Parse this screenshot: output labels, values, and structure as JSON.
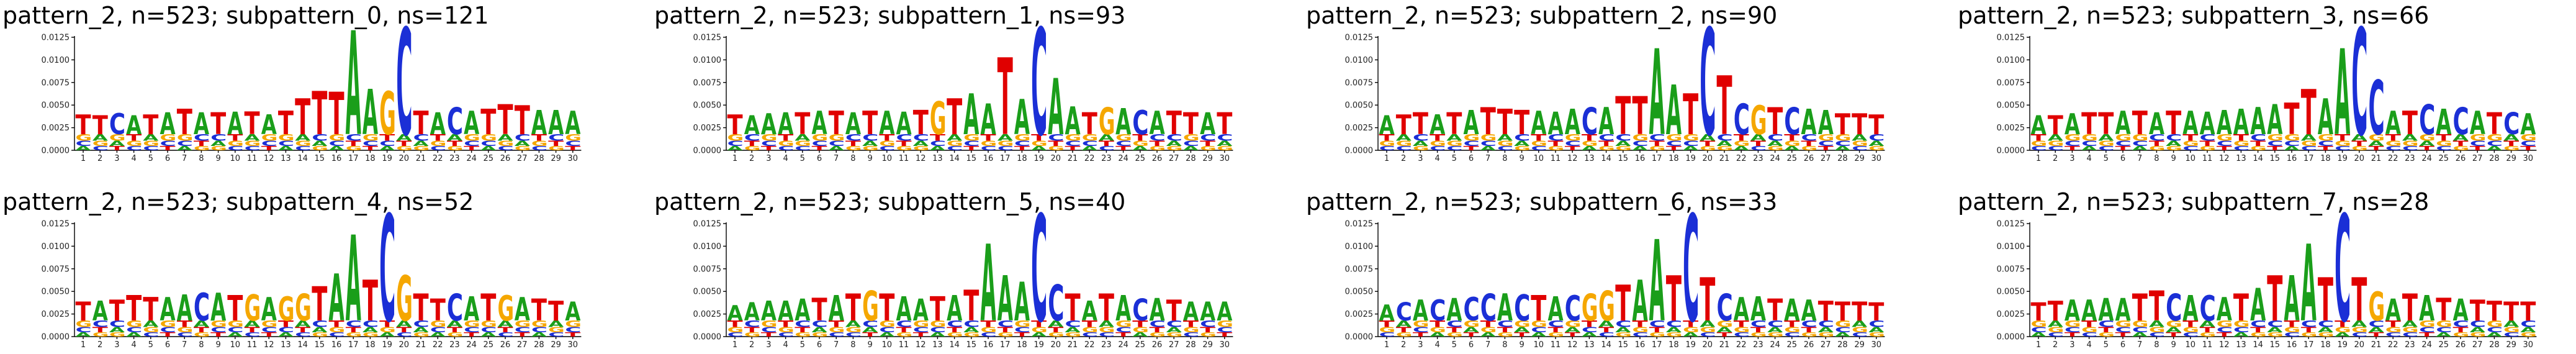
{
  "colors": {
    "A": "#1a9e1a",
    "C": "#1b2fd6",
    "G": "#f5a700",
    "T": "#e00000"
  },
  "chart_data": [
    {
      "type": "sequence-logo",
      "title": "pattern_2, n=523; subpattern_0, ns=121",
      "y_ticks": [
        "0.0000",
        "0.0025",
        "0.0050",
        "0.0075",
        "0.0100",
        "0.0125"
      ],
      "ylim": [
        0,
        0.0125
      ],
      "positions": [
        "1",
        "2",
        "3",
        "4",
        "5",
        "6",
        "7",
        "8",
        "9",
        "10",
        "11",
        "12",
        "13",
        "14",
        "15",
        "16",
        "17",
        "18",
        "19",
        "20",
        "21",
        "22",
        "23",
        "24",
        "25",
        "26",
        "27",
        "28",
        "29",
        "30"
      ],
      "top_letter": [
        "T",
        "T",
        "C",
        "A",
        "T",
        "A",
        "T",
        "A",
        "T",
        "A",
        "T",
        "A",
        "T",
        "T",
        "T",
        "T",
        "A",
        "A",
        "G",
        "C",
        "T",
        "A",
        "C",
        "A",
        "T",
        "T",
        "T",
        "A",
        "A",
        "A"
      ],
      "top_value": [
        0.0022,
        0.0021,
        0.0023,
        0.0021,
        0.0022,
        0.0024,
        0.0028,
        0.0024,
        0.0024,
        0.0025,
        0.0025,
        0.0022,
        0.0026,
        0.004,
        0.0048,
        0.0047,
        0.0115,
        0.005,
        0.0048,
        0.0118,
        0.0026,
        0.0024,
        0.003,
        0.0026,
        0.0028,
        0.0033,
        0.0032,
        0.0027,
        0.0027,
        0.0026
      ]
    },
    {
      "type": "sequence-logo",
      "title": "pattern_2, n=523; subpattern_1, ns=93",
      "y_ticks": [
        "0.0000",
        "0.0025",
        "0.0050",
        "0.0075",
        "0.0100",
        "0.0125"
      ],
      "ylim": [
        0,
        0.0125
      ],
      "positions": [
        "1",
        "2",
        "3",
        "4",
        "5",
        "6",
        "7",
        "8",
        "9",
        "10",
        "11",
        "12",
        "13",
        "14",
        "15",
        "16",
        "17",
        "18",
        "19",
        "20",
        "21",
        "22",
        "23",
        "24",
        "25",
        "26",
        "27",
        "28",
        "29",
        "30"
      ],
      "top_letter": [
        "T",
        "A",
        "A",
        "A",
        "T",
        "A",
        "T",
        "A",
        "T",
        "A",
        "A",
        "T",
        "G",
        "T",
        "A",
        "A",
        "T",
        "A",
        "C",
        "A",
        "A",
        "T",
        "G",
        "A",
        "C",
        "A",
        "T",
        "T",
        "A",
        "T"
      ],
      "top_value": [
        0.0022,
        0.0021,
        0.0023,
        0.0024,
        0.0024,
        0.0026,
        0.0026,
        0.0024,
        0.0026,
        0.0026,
        0.0025,
        0.0027,
        0.0036,
        0.004,
        0.0045,
        0.0034,
        0.0085,
        0.0039,
        0.0118,
        0.0062,
        0.0031,
        0.0024,
        0.003,
        0.0029,
        0.0027,
        0.0026,
        0.0026,
        0.0024,
        0.0024,
        0.0024
      ]
    },
    {
      "type": "sequence-logo",
      "title": "pattern_2, n=523; subpattern_2, ns=90",
      "y_ticks": [
        "0.0000",
        "0.0025",
        "0.0050",
        "0.0075",
        "0.0100",
        "0.0125"
      ],
      "ylim": [
        0,
        0.0125
      ],
      "positions": [
        "1",
        "2",
        "3",
        "4",
        "5",
        "6",
        "7",
        "8",
        "9",
        "10",
        "11",
        "12",
        "13",
        "14",
        "15",
        "16",
        "17",
        "18",
        "19",
        "20",
        "21",
        "22",
        "23",
        "24",
        "25",
        "26",
        "27",
        "28",
        "29",
        "30"
      ],
      "top_letter": [
        "A",
        "T",
        "T",
        "A",
        "T",
        "A",
        "T",
        "T",
        "T",
        "A",
        "A",
        "A",
        "C",
        "A",
        "T",
        "T",
        "A",
        "A",
        "T",
        "C",
        "T",
        "C",
        "G",
        "T",
        "C",
        "A",
        "A",
        "T",
        "T",
        "T"
      ],
      "top_value": [
        0.0021,
        0.0022,
        0.0024,
        0.0022,
        0.0024,
        0.0027,
        0.003,
        0.0028,
        0.0027,
        0.0026,
        0.0025,
        0.0028,
        0.003,
        0.003,
        0.0042,
        0.0042,
        0.0095,
        0.0055,
        0.0045,
        0.0118,
        0.0065,
        0.0034,
        0.0032,
        0.003,
        0.003,
        0.0028,
        0.0027,
        0.0023,
        0.0023,
        0.0022
      ]
    },
    {
      "type": "sequence-logo",
      "title": "pattern_2, n=523; subpattern_3, ns=66",
      "y_ticks": [
        "0.0000",
        "0.0025",
        "0.0050",
        "0.0075",
        "0.0100",
        "0.0125"
      ],
      "ylim": [
        0,
        0.0125
      ],
      "positions": [
        "1",
        "2",
        "3",
        "4",
        "5",
        "6",
        "7",
        "8",
        "9",
        "10",
        "11",
        "12",
        "13",
        "14",
        "15",
        "16",
        "17",
        "18",
        "19",
        "20",
        "21",
        "22",
        "23",
        "24",
        "25",
        "26",
        "27",
        "28",
        "29",
        "30"
      ],
      "top_letter": [
        "A",
        "T",
        "A",
        "T",
        "T",
        "A",
        "T",
        "A",
        "T",
        "A",
        "A",
        "A",
        "A",
        "A",
        "A",
        "T",
        "T",
        "A",
        "A",
        "C",
        "C",
        "A",
        "T",
        "C",
        "A",
        "C",
        "A",
        "T",
        "C",
        "A"
      ],
      "top_value": [
        0.0021,
        0.0021,
        0.0023,
        0.0024,
        0.0024,
        0.0026,
        0.0026,
        0.0024,
        0.0026,
        0.0026,
        0.0025,
        0.0027,
        0.0028,
        0.003,
        0.0033,
        0.0035,
        0.005,
        0.004,
        0.0095,
        0.0118,
        0.006,
        0.0026,
        0.0026,
        0.0033,
        0.0028,
        0.003,
        0.0026,
        0.0024,
        0.0024,
        0.0023
      ]
    },
    {
      "type": "sequence-logo",
      "title": "pattern_2, n=523; subpattern_4, ns=52",
      "y_ticks": [
        "0.0000",
        "0.0025",
        "0.0050",
        "0.0075",
        "0.0100",
        "0.0125"
      ],
      "ylim": [
        0,
        0.0125
      ],
      "positions": [
        "1",
        "2",
        "3",
        "4",
        "5",
        "6",
        "7",
        "8",
        "9",
        "10",
        "11",
        "12",
        "13",
        "14",
        "15",
        "16",
        "17",
        "18",
        "19",
        "20",
        "21",
        "22",
        "23",
        "24",
        "25",
        "26",
        "27",
        "28",
        "29",
        "30"
      ],
      "top_letter": [
        "T",
        "A",
        "T",
        "T",
        "T",
        "A",
        "A",
        "C",
        "A",
        "T",
        "G",
        "A",
        "G",
        "G",
        "T",
        "A",
        "A",
        "T",
        "C",
        "G",
        "T",
        "T",
        "C",
        "A",
        "T",
        "G",
        "A",
        "T",
        "T",
        "A"
      ],
      "top_value": [
        0.0021,
        0.0022,
        0.0023,
        0.0028,
        0.0026,
        0.0026,
        0.0029,
        0.0031,
        0.0031,
        0.0028,
        0.0029,
        0.0026,
        0.0027,
        0.003,
        0.0038,
        0.0052,
        0.0095,
        0.0045,
        0.0118,
        0.005,
        0.003,
        0.0024,
        0.003,
        0.0027,
        0.003,
        0.0028,
        0.0026,
        0.0024,
        0.0022,
        0.0021
      ]
    },
    {
      "type": "sequence-logo",
      "title": "pattern_2, n=523; subpattern_5, ns=40",
      "y_ticks": [
        "0.0000",
        "0.0025",
        "0.0050",
        "0.0075",
        "0.0100",
        "0.0125"
      ],
      "ylim": [
        0,
        0.0125
      ],
      "positions": [
        "1",
        "2",
        "3",
        "4",
        "5",
        "6",
        "7",
        "8",
        "9",
        "10",
        "11",
        "12",
        "13",
        "14",
        "15",
        "16",
        "17",
        "18",
        "19",
        "20",
        "21",
        "22",
        "23",
        "24",
        "25",
        "26",
        "27",
        "28",
        "29",
        "30"
      ],
      "top_letter": [
        "A",
        "A",
        "A",
        "A",
        "A",
        "T",
        "A",
        "T",
        "G",
        "T",
        "A",
        "A",
        "T",
        "A",
        "T",
        "A",
        "A",
        "A",
        "C",
        "C",
        "T",
        "A",
        "T",
        "A",
        "C",
        "A",
        "T",
        "A",
        "A",
        "A"
      ],
      "top_value": [
        0.0017,
        0.002,
        0.0022,
        0.0022,
        0.0024,
        0.0025,
        0.0028,
        0.003,
        0.0033,
        0.003,
        0.0027,
        0.0024,
        0.0027,
        0.0028,
        0.0034,
        0.0085,
        0.005,
        0.0043,
        0.0118,
        0.004,
        0.003,
        0.0022,
        0.003,
        0.0028,
        0.0024,
        0.0025,
        0.0023,
        0.0021,
        0.0021,
        0.0021
      ]
    },
    {
      "type": "sequence-logo",
      "title": "pattern_2, n=523; subpattern_6, ns=33",
      "y_ticks": [
        "0.0000",
        "0.0025",
        "0.0050",
        "0.0075",
        "0.0100",
        "0.0125"
      ],
      "ylim": [
        0,
        0.0125
      ],
      "positions": [
        "1",
        "2",
        "3",
        "4",
        "5",
        "6",
        "7",
        "8",
        "9",
        "10",
        "11",
        "12",
        "13",
        "14",
        "15",
        "16",
        "17",
        "18",
        "19",
        "20",
        "21",
        "22",
        "23",
        "24",
        "25",
        "26",
        "27",
        "28",
        "29",
        "30"
      ],
      "top_letter": [
        "A",
        "C",
        "A",
        "C",
        "A",
        "C",
        "C",
        "A",
        "C",
        "T",
        "A",
        "C",
        "G",
        "G",
        "T",
        "A",
        "A",
        "T",
        "C",
        "T",
        "C",
        "A",
        "A",
        "T",
        "A",
        "A",
        "T",
        "T",
        "T",
        "T"
      ],
      "top_value": [
        0.0018,
        0.002,
        0.0023,
        0.0023,
        0.0025,
        0.0026,
        0.003,
        0.003,
        0.0029,
        0.0028,
        0.0027,
        0.0028,
        0.003,
        0.0033,
        0.004,
        0.0045,
        0.009,
        0.005,
        0.0118,
        0.0048,
        0.003,
        0.0026,
        0.0027,
        0.0024,
        0.0024,
        0.0023,
        0.0022,
        0.0021,
        0.0021,
        0.002
      ]
    },
    {
      "type": "sequence-logo",
      "title": "pattern_2, n=523; subpattern_7, ns=28",
      "y_ticks": [
        "0.0000",
        "0.0025",
        "0.0050",
        "0.0075",
        "0.0100",
        "0.0125"
      ],
      "ylim": [
        0,
        0.0125
      ],
      "positions": [
        "1",
        "2",
        "3",
        "4",
        "5",
        "6",
        "7",
        "8",
        "9",
        "10",
        "11",
        "12",
        "13",
        "14",
        "15",
        "16",
        "17",
        "18",
        "19",
        "20",
        "21",
        "22",
        "23",
        "24",
        "25",
        "26",
        "27",
        "28",
        "29",
        "30"
      ],
      "top_letter": [
        "T",
        "T",
        "A",
        "A",
        "A",
        "A",
        "T",
        "T",
        "C",
        "A",
        "C",
        "A",
        "T",
        "A",
        "T",
        "A",
        "A",
        "T",
        "C",
        "T",
        "G",
        "A",
        "T",
        "A",
        "T",
        "A",
        "T",
        "T",
        "T",
        "T"
      ],
      "top_value": [
        0.002,
        0.0022,
        0.0023,
        0.0023,
        0.0025,
        0.0025,
        0.003,
        0.0033,
        0.003,
        0.0028,
        0.0028,
        0.0026,
        0.003,
        0.0036,
        0.005,
        0.005,
        0.0085,
        0.0048,
        0.0118,
        0.0048,
        0.0032,
        0.0024,
        0.003,
        0.0028,
        0.0025,
        0.0024,
        0.0023,
        0.0022,
        0.0021,
        0.0021
      ]
    }
  ]
}
